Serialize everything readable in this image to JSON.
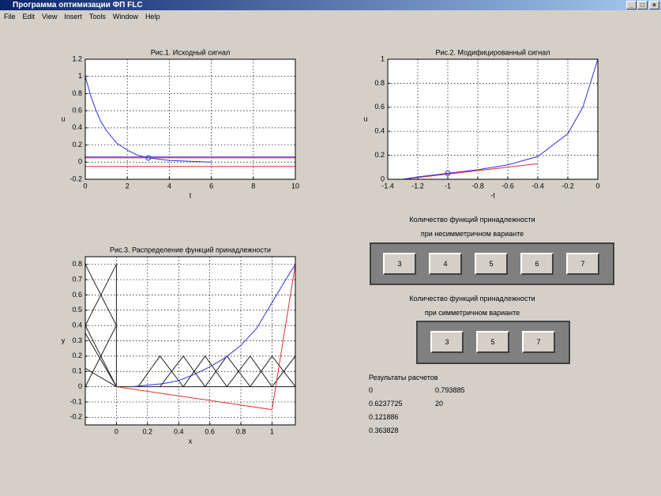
{
  "window_title": "Программа оптимизации ФП FLC",
  "menu": [
    "File",
    "Edit",
    "View",
    "Insert",
    "Tools",
    "Window",
    "Help"
  ],
  "chart_data": [
    {
      "type": "line",
      "title": "Рис.1. Исходный сигнал",
      "x_label": "t",
      "y_label": "u",
      "xlim": [
        0,
        10
      ],
      "xticks": [
        0,
        2,
        4,
        6,
        8,
        10
      ],
      "ylim": [
        -0.2,
        1.2
      ],
      "yticks": [
        -0.2,
        0,
        0.2,
        0.4,
        0.6,
        0.8,
        1,
        1.2
      ],
      "grid": true,
      "series": [
        {
          "color": "#e03030",
          "x": [
            0,
            10
          ],
          "values": [
            0.05,
            0.05
          ]
        },
        {
          "color": "#e03030",
          "x": [
            0,
            10
          ],
          "values": [
            -0.05,
            -0.05
          ]
        },
        {
          "color": "#3030e0",
          "x": [
            0,
            10
          ],
          "values": [
            0.06,
            0.06
          ]
        },
        {
          "color": "#3030e0",
          "x": [
            0,
            0.25,
            0.5,
            0.75,
            1,
            1.5,
            2,
            2.5,
            3,
            4,
            5,
            6
          ],
          "values": [
            1,
            0.78,
            0.61,
            0.47,
            0.37,
            0.22,
            0.14,
            0.08,
            0.05,
            0.02,
            0.01,
            0
          ]
        },
        {
          "color": "#3030e0",
          "marker": "o",
          "x": [
            3
          ],
          "values": [
            0.05
          ]
        }
      ]
    },
    {
      "type": "line",
      "title": "Рис.2. Модифицированный сигнал",
      "x_label": "-t",
      "y_label": "u",
      "xlim": [
        -1.4,
        0
      ],
      "xticks": [
        -1.4,
        -1.2,
        -1,
        -0.8,
        -0.6,
        -0.4,
        -0.2,
        0
      ],
      "ylim": [
        0,
        1
      ],
      "yticks": [
        0,
        0.2,
        0.4,
        0.6,
        0.8,
        1
      ],
      "grid": true,
      "series": [
        {
          "color": "#e03030",
          "x": [
            -1.3,
            -0.4
          ],
          "values": [
            0,
            0.13
          ]
        },
        {
          "color": "#3030e0",
          "x": [
            -1.3,
            -1.2,
            -1,
            -0.8,
            -0.6,
            -0.4,
            -0.2,
            -0.1,
            0
          ],
          "values": [
            0,
            0.02,
            0.05,
            0.08,
            0.12,
            0.19,
            0.38,
            0.6,
            1
          ]
        },
        {
          "color": "#3030e0",
          "marker": "o",
          "x": [
            -1
          ],
          "values": [
            0.05
          ]
        }
      ]
    },
    {
      "type": "line",
      "title": "Рис.3. Распределение функций принадлежности",
      "x_label": "x",
      "y_label": "y",
      "xlim": [
        -0.2,
        1.15
      ],
      "xticks": [
        0,
        0.2,
        0.4,
        0.6,
        0.8,
        1
      ],
      "ylim": [
        -0.25,
        0.85
      ],
      "yticks": [
        -0.2,
        -0.1,
        0,
        0.1,
        0.2,
        0.3,
        0.4,
        0.5,
        0.6,
        0.7,
        0.8
      ],
      "grid": true,
      "series": [
        {
          "color": "#202020",
          "x": [
            0,
            0
          ],
          "values": [
            0,
            0.8
          ]
        },
        {
          "color": "#202020",
          "x": [
            -0.2,
            0,
            -0.2
          ],
          "values": [
            0.8,
            0.4,
            0
          ]
        },
        {
          "color": "#202020",
          "x": [
            0,
            -0.2,
            0
          ],
          "values": [
            0.8,
            0.4,
            0
          ]
        },
        {
          "color": "#202020",
          "x": [
            -0.2,
            0,
            -0.2
          ],
          "values": [
            0.12,
            0,
            0.35
          ]
        },
        {
          "color": "#202020",
          "x": [
            0,
            1.15
          ],
          "values": [
            0,
            0
          ]
        },
        {
          "color": "#202020",
          "x": [
            0.14,
            0.28,
            0.43,
            0.57,
            0.71,
            0.86,
            1,
            1.15
          ],
          "values": [
            0,
            0.2,
            0,
            0.2,
            0,
            0.2,
            0,
            0.2
          ]
        },
        {
          "color": "#202020",
          "x": [
            0.28,
            0.43,
            0.57,
            0.71,
            0.86,
            1,
            1.15
          ],
          "values": [
            0,
            0.2,
            0,
            0.2,
            0,
            0.2,
            0
          ]
        },
        {
          "color": "#3030e0",
          "x": [
            0.1,
            0.2,
            0.3,
            0.4,
            0.5,
            0.6,
            0.7,
            0.8,
            0.9,
            1,
            1.1,
            1.15
          ],
          "values": [
            0,
            0.01,
            0.02,
            0.04,
            0.08,
            0.13,
            0.19,
            0.27,
            0.38,
            0.55,
            0.72,
            0.8
          ]
        },
        {
          "color": "#e03030",
          "x": [
            0,
            1,
            1.15
          ],
          "values": [
            0,
            -0.15,
            0.8
          ]
        }
      ]
    }
  ],
  "panel_asym": {
    "label_1": "Количество функций принадлежности",
    "label_2": "при несимметричном варианте",
    "buttons": [
      "3",
      "4",
      "5",
      "6",
      "7"
    ]
  },
  "panel_sym": {
    "label_1": "Количество функций принадлежности",
    "label_2": "при симметричном варианте",
    "buttons": [
      "3",
      "5",
      "7"
    ]
  },
  "results": {
    "title": "Результаты расчетов",
    "rows": [
      [
        "0",
        "0.793885"
      ],
      [
        "0.6237725",
        "20"
      ],
      [
        "0.121886"
      ],
      [
        "0.363828"
      ]
    ]
  }
}
